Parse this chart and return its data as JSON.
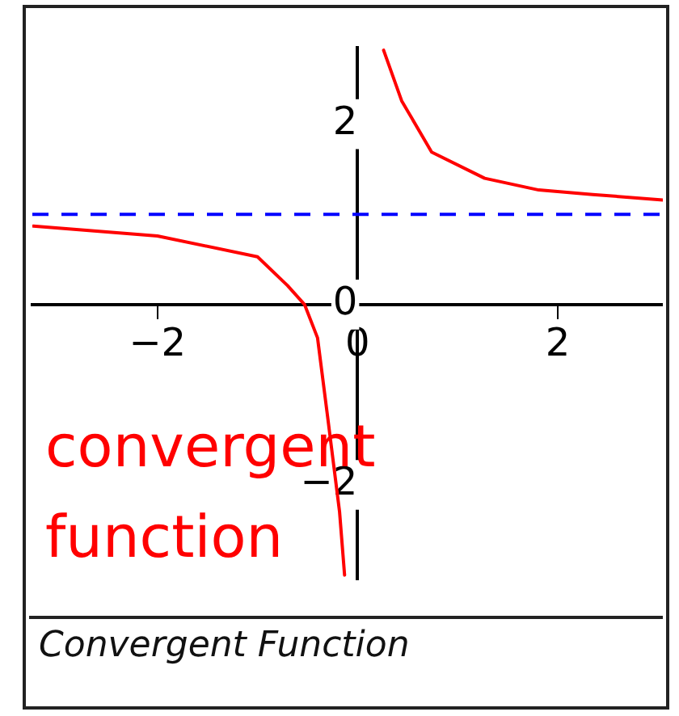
{
  "chart_data": {
    "type": "line",
    "title": "Convergent Function",
    "annotations": [
      "convergent function"
    ],
    "xlim": [
      -3.25,
      3.05
    ],
    "ylim": [
      -3.05,
      2.85
    ],
    "xticks": [
      -2,
      0,
      2
    ],
    "yticks": [
      -2,
      0,
      2
    ],
    "grid": false,
    "legend": false,
    "marker": "none",
    "line_style": "solid",
    "series": [
      {
        "color": "#ff0000",
        "x": [
          -3.24,
          -2,
          -1,
          -0.7,
          -0.53,
          -0.4,
          -0.3,
          -0.18,
          -0.13
        ],
        "values": [
          0.87,
          0.76,
          0.53,
          0.21,
          0,
          -0.37,
          -1.24,
          -2.3,
          -3.0
        ]
      },
      {
        "color": "#ff0000",
        "x": [
          0.26,
          0.44,
          0.74,
          1.27,
          1.81,
          2.35,
          3.05
        ],
        "values": [
          2.82,
          2.26,
          1.69,
          1.4,
          1.27,
          1.22,
          1.16
        ]
      }
    ],
    "ref_lines": [
      {
        "axis": "y",
        "value": 1,
        "color": "#0000ff",
        "line_style": "dashed"
      }
    ]
  }
}
